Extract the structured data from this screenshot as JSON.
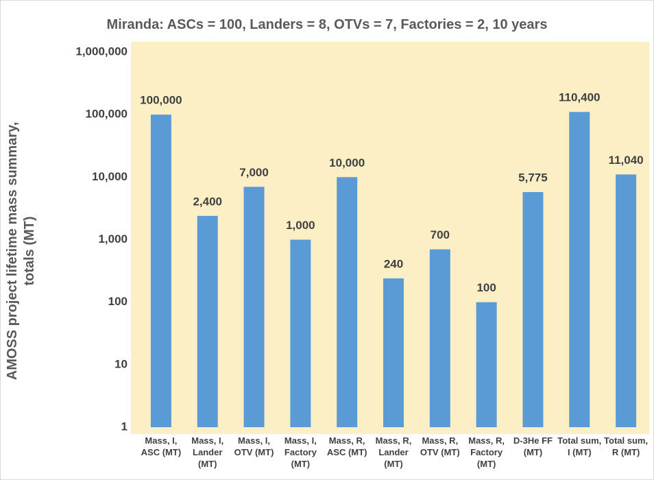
{
  "chart_data": {
    "type": "bar",
    "title": "Miranda: ASCs = 100, Landers = 8, OTVs = 7, Factories = 2, 10 years",
    "y_label": "AMOSS project lifetime mass summary, totals (MT)",
    "categories": [
      "Mass, I, ASC (MT)",
      "Mass, I, Lander (MT)",
      "Mass, I, OTV (MT)",
      "Mass, I, Factory (MT)",
      "Mass, R, ASC (MT)",
      "Mass, R, Lander (MT)",
      "Mass, R, OTV (MT)",
      "Mass, R, Factory (MT)",
      "D-3He FF (MT)",
      "Total sum, I (MT)",
      "Total sum, R (MT)"
    ],
    "values": [
      100000,
      2400,
      7000,
      1000,
      10000,
      240,
      700,
      100,
      5775,
      110400,
      11040
    ],
    "value_labels": [
      "100,000",
      "2,400",
      "7,000",
      "1,000",
      "10,000",
      "240",
      "700",
      "100",
      "5,775",
      "110,400",
      "11,040"
    ],
    "color": "#5b9bd5",
    "log_scale": true,
    "ylim": [
      1,
      1000000
    ],
    "yticks": [
      1,
      10,
      100,
      {
        "value": 1000,
        "label": "1,000"
      },
      {
        "value": 10000,
        "label": "10,000"
      },
      {
        "value": 100000,
        "label": "100,000"
      },
      {
        "value": 1000000,
        "label": "1,000,000"
      }
    ],
    "grid": false
  }
}
